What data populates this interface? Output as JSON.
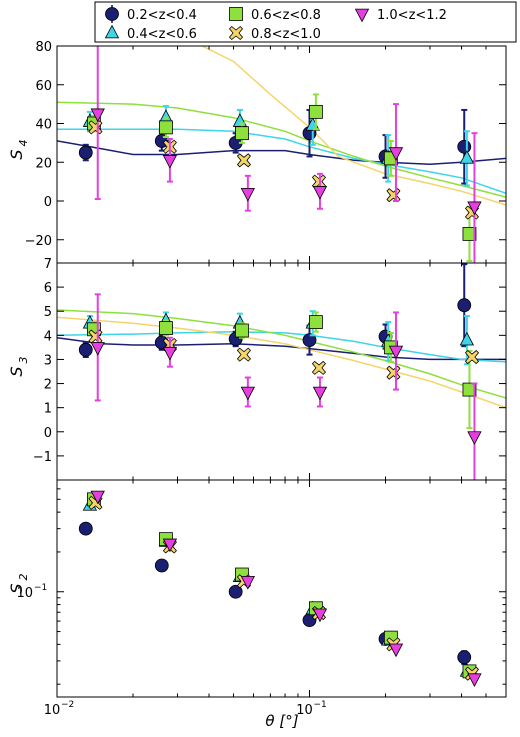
{
  "chart_data": {
    "type": "scatter",
    "xlabel": "θ [°]",
    "xscale": "log",
    "xlim": [
      0.01,
      0.6
    ],
    "xticks": [
      {
        "value": 0.01,
        "base": "10",
        "exp": "−2"
      },
      {
        "value": 0.1,
        "base": "10",
        "exp": "−1"
      }
    ],
    "legend": {
      "placement": "top",
      "entries": [
        {
          "label": "0.2<z<0.4",
          "color": "#1a1f72",
          "marker": "circle"
        },
        {
          "label": "0.4<z<0.6",
          "color": "#3dd5e8",
          "marker": "triangle-up"
        },
        {
          "label": "0.6<z<0.8",
          "color": "#8ee03c",
          "marker": "square"
        },
        {
          "label": "0.8<z<1.0",
          "color": "#f5d46a",
          "marker": "x-filled"
        },
        {
          "label": "1.0<z<1.2",
          "color": "#e63fe0",
          "marker": "triangle-down"
        }
      ]
    },
    "panels": [
      {
        "id": "s4",
        "ylabel": "S",
        "ylabel_sub": "4",
        "yscale": "linear",
        "ylim": [
          -32,
          80
        ],
        "yticks": [
          {
            "value": -20,
            "label": "−20"
          },
          {
            "value": 0,
            "label": "0"
          },
          {
            "value": 20,
            "label": "20"
          },
          {
            "value": 40,
            "label": "40"
          },
          {
            "value": 60,
            "label": "60"
          },
          {
            "value": 80,
            "label": "80"
          }
        ],
        "lines": [
          {
            "series": 0,
            "x": [
              0.01,
              0.015,
              0.02,
              0.03,
              0.05,
              0.08,
              0.1,
              0.15,
              0.2,
              0.3,
              0.4,
              0.6
            ],
            "y": [
              31,
              27,
              24,
              24,
              26,
              26,
              24,
              21,
              20,
              19,
              20,
              22
            ]
          },
          {
            "series": 1,
            "x": [
              0.01,
              0.02,
              0.03,
              0.05,
              0.08,
              0.1,
              0.15,
              0.2,
              0.3,
              0.4,
              0.6
            ],
            "y": [
              37,
              37,
              37,
              36,
              32,
              28,
              22,
              19,
              15,
              12,
              4
            ]
          },
          {
            "series": 2,
            "x": [
              0.01,
              0.02,
              0.03,
              0.05,
              0.08,
              0.1,
              0.15,
              0.2,
              0.3,
              0.4,
              0.6
            ],
            "y": [
              51,
              50,
              48,
              43,
              36,
              31,
              23,
              18,
              12,
              8,
              2
            ]
          },
          {
            "series": 3,
            "x": [
              0.035,
              0.05,
              0.07,
              0.1,
              0.13,
              0.2,
              0.3,
              0.4,
              0.6
            ],
            "y": [
              82,
              72,
              55,
              38,
              23,
              14,
              9,
              5,
              -2
            ]
          }
        ],
        "points": [
          {
            "series": 0,
            "x": [
              0.013,
              0.026,
              0.051,
              0.1,
              0.2,
              0.41
            ],
            "y": [
              25,
              31,
              30,
              35,
              23,
              28
            ],
            "err": [
              4,
              5,
              5,
              12,
              11,
              19
            ]
          },
          {
            "series": 1,
            "x": [
              0.0135,
              0.027,
              0.053,
              0.103,
              0.205,
              0.42
            ],
            "y": [
              41,
              43,
              41,
              39,
              22,
              22
            ],
            "err": [
              5,
              6,
              6,
              10,
              12,
              14
            ]
          },
          {
            "series": 2,
            "x": [
              0.014,
              0.027,
              0.054,
              0.106,
              0.21,
              0.43
            ],
            "y": [
              40,
              38,
              35,
              46,
              22,
              -17
            ],
            "err": [
              4,
              5,
              5,
              9,
              9,
              14
            ]
          },
          {
            "series": 3,
            "x": [
              0.0142,
              0.028,
              0.055,
              0.109,
              0.215,
              0.44
            ],
            "y": [
              38,
              28,
              21,
              10,
              3,
              -6
            ],
            "err": [
              0,
              0,
              0,
              0,
              0,
              0
            ]
          },
          {
            "series": 4,
            "x": [
              0.0145,
              0.028,
              0.057,
              0.11,
              0.22,
              0.45
            ],
            "y": [
              45,
              21,
              4,
              5,
              25,
              -3
            ],
            "err": [
              44,
              11,
              9,
              9,
              25,
              38
            ]
          }
        ]
      },
      {
        "id": "s3",
        "ylabel": "S",
        "ylabel_sub": "3",
        "yscale": "linear",
        "ylim": [
          -2,
          7
        ],
        "yticks": [
          {
            "value": -1,
            "label": "−1"
          },
          {
            "value": 0,
            "label": "0"
          },
          {
            "value": 1,
            "label": "1"
          },
          {
            "value": 2,
            "label": "2"
          },
          {
            "value": 3,
            "label": "3"
          },
          {
            "value": 4,
            "label": "4"
          },
          {
            "value": 5,
            "label": "5"
          },
          {
            "value": 6,
            "label": "6"
          },
          {
            "value": 7,
            "label": "7"
          }
        ],
        "lines": [
          {
            "series": 0,
            "x": [
              0.01,
              0.015,
              0.02,
              0.03,
              0.05,
              0.08,
              0.1,
              0.15,
              0.2,
              0.3,
              0.4,
              0.6
            ],
            "y": [
              3.9,
              3.65,
              3.6,
              3.6,
              3.65,
              3.55,
              3.45,
              3.25,
              3.1,
              3.0,
              3.0,
              3.0
            ]
          },
          {
            "series": 1,
            "x": [
              0.01,
              0.02,
              0.03,
              0.05,
              0.08,
              0.1,
              0.15,
              0.2,
              0.3,
              0.4,
              0.6
            ],
            "y": [
              4.0,
              4.05,
              4.1,
              4.15,
              4.1,
              4.0,
              3.75,
              3.5,
              3.2,
              3.0,
              2.9
            ]
          },
          {
            "series": 2,
            "x": [
              0.01,
              0.02,
              0.03,
              0.05,
              0.08,
              0.1,
              0.15,
              0.2,
              0.3,
              0.4,
              0.6
            ],
            "y": [
              5.05,
              4.9,
              4.7,
              4.4,
              4.0,
              3.75,
              3.3,
              2.95,
              2.4,
              1.95,
              1.4
            ]
          },
          {
            "series": 3,
            "x": [
              0.01,
              0.02,
              0.03,
              0.05,
              0.08,
              0.1,
              0.15,
              0.2,
              0.3,
              0.4,
              0.6
            ],
            "y": [
              4.75,
              4.5,
              4.3,
              4.0,
              3.65,
              3.4,
              2.95,
              2.6,
              2.1,
              1.65,
              1.0
            ]
          }
        ],
        "points": [
          {
            "series": 0,
            "x": [
              0.013,
              0.026,
              0.051,
              0.1,
              0.2,
              0.41
            ],
            "y": [
              3.4,
              3.7,
              3.85,
              3.8,
              3.95,
              5.25
            ],
            "err": [
              0.3,
              0.3,
              0.3,
              0.6,
              0.5,
              1.7
            ]
          },
          {
            "series": 1,
            "x": [
              0.0135,
              0.027,
              0.053,
              0.103,
              0.205,
              0.42
            ],
            "y": [
              4.5,
              4.6,
              4.5,
              4.5,
              3.75,
              3.8
            ],
            "err": [
              0.3,
              0.35,
              0.4,
              0.5,
              0.8,
              1.0
            ]
          },
          {
            "series": 2,
            "x": [
              0.014,
              0.027,
              0.054,
              0.106,
              0.21,
              0.43
            ],
            "y": [
              4.25,
              4.3,
              4.2,
              4.55,
              3.5,
              1.75
            ],
            "err": [
              0.3,
              0.3,
              0.3,
              0.4,
              0.6,
              1.6
            ]
          },
          {
            "series": 3,
            "x": [
              0.0142,
              0.028,
              0.055,
              0.109,
              0.215,
              0.44
            ],
            "y": [
              3.95,
              3.6,
              3.2,
              2.65,
              2.45,
              3.1
            ],
            "err": [
              0,
              0,
              0,
              0,
              0,
              0
            ]
          },
          {
            "series": 4,
            "x": [
              0.0145,
              0.028,
              0.057,
              0.11,
              0.22,
              0.45
            ],
            "y": [
              3.5,
              3.3,
              1.65,
              1.65,
              3.35,
              -0.2
            ],
            "err": [
              2.2,
              0.6,
              0.6,
              0.6,
              1.6,
              2.2
            ]
          }
        ]
      },
      {
        "id": "s2",
        "ylabel": "S",
        "ylabel_sub": "2",
        "yscale": "log",
        "ylim": [
          0.016,
          0.7
        ],
        "yticks": [
          {
            "value": 0.1,
            "base": "10",
            "exp": "−1"
          }
        ],
        "lines": [],
        "points": [
          {
            "series": 0,
            "x": [
              0.013,
              0.026,
              0.051,
              0.1,
              0.2,
              0.41
            ],
            "y": [
              0.3,
              0.158,
              0.1,
              0.061,
              0.044,
              0.032
            ],
            "err": [
              0,
              0,
              0,
              0,
              0,
              0.0035
            ]
          },
          {
            "series": 1,
            "x": [
              0.0135,
              0.027,
              0.053,
              0.103,
              0.205,
              0.42
            ],
            "y": [
              0.45,
              0.24,
              0.13,
              0.074,
              0.043,
              0.025
            ],
            "err": [
              0,
              0,
              0,
              0,
              0,
              0
            ]
          },
          {
            "series": 2,
            "x": [
              0.014,
              0.027,
              0.054,
              0.106,
              0.21,
              0.43
            ],
            "y": [
              0.5,
              0.25,
              0.135,
              0.075,
              0.045,
              0.025
            ],
            "err": [
              0,
              0,
              0,
              0,
              0,
              0
            ]
          },
          {
            "series": 3,
            "x": [
              0.0142,
              0.028,
              0.055,
              0.109,
              0.215,
              0.44
            ],
            "y": [
              0.47,
              0.22,
              0.12,
              0.069,
              0.04,
              0.024
            ],
            "err": [
              0,
              0,
              0,
              0,
              0,
              0
            ]
          },
          {
            "series": 4,
            "x": [
              0.0145,
              0.028,
              0.057,
              0.11,
              0.22,
              0.45
            ],
            "y": [
              0.53,
              0.23,
              0.12,
              0.068,
              0.037,
              0.022
            ],
            "err": [
              0,
              0,
              0,
              0,
              0,
              0
            ]
          }
        ]
      }
    ]
  }
}
